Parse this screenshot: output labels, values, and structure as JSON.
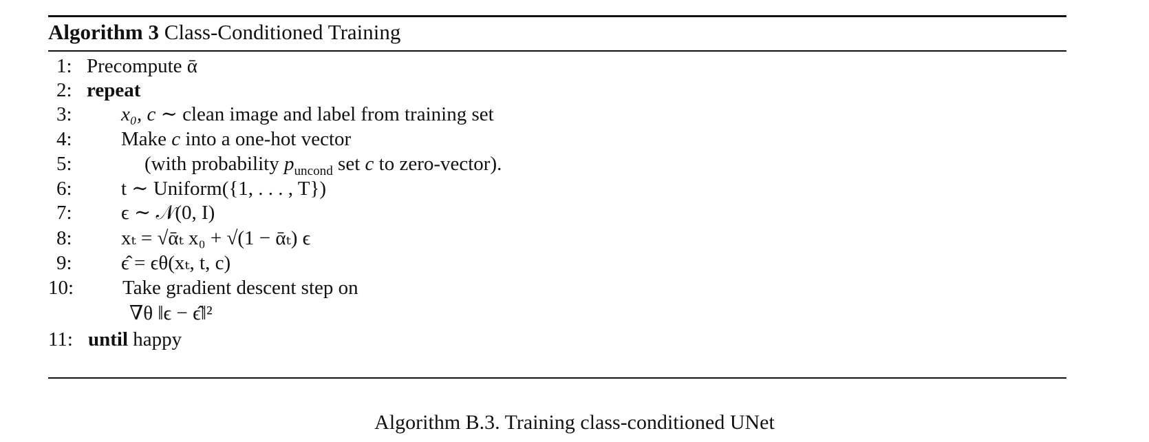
{
  "algorithm": {
    "label": "Algorithm 3",
    "title": "Class-Conditioned Training",
    "lines": [
      {
        "num": "1:",
        "text": "Precompute ᾱ"
      },
      {
        "num": "2:",
        "keyword": "repeat",
        "text": ""
      },
      {
        "num": "3:",
        "math": "x₀, c ∼",
        "text": "clean image and label from training set"
      },
      {
        "num": "4:",
        "text_a": "Make",
        "math": "c",
        "text_b": "into a one-hot vector"
      },
      {
        "num": "5:",
        "text_a": "(with probability",
        "math": "p",
        "sub": "uncond",
        "text_b": "set",
        "math2": "c",
        "text_c": "to zero-vector)."
      },
      {
        "num": "6:",
        "formula": "t ∼ Uniform({1, . . . , T})"
      },
      {
        "num": "7:",
        "formula": "ϵ ∼ 𝒩(0, I)"
      },
      {
        "num": "8:",
        "formula": "xₜ = √ᾱₜ x₀ + √(1 − ᾱₜ) ϵ"
      },
      {
        "num": "9:",
        "formula": "ϵ̂ = ϵθ(xₜ, t, c)"
      },
      {
        "num": "10:",
        "text": "Take gradient descent step on"
      },
      {
        "num": "",
        "formula": "∇θ ‖ϵ − ϵ̂‖²"
      },
      {
        "num": "11:",
        "keyword": "until",
        "text": "happy"
      }
    ]
  },
  "caption": "Algorithm B.3. Training class-conditioned UNet"
}
